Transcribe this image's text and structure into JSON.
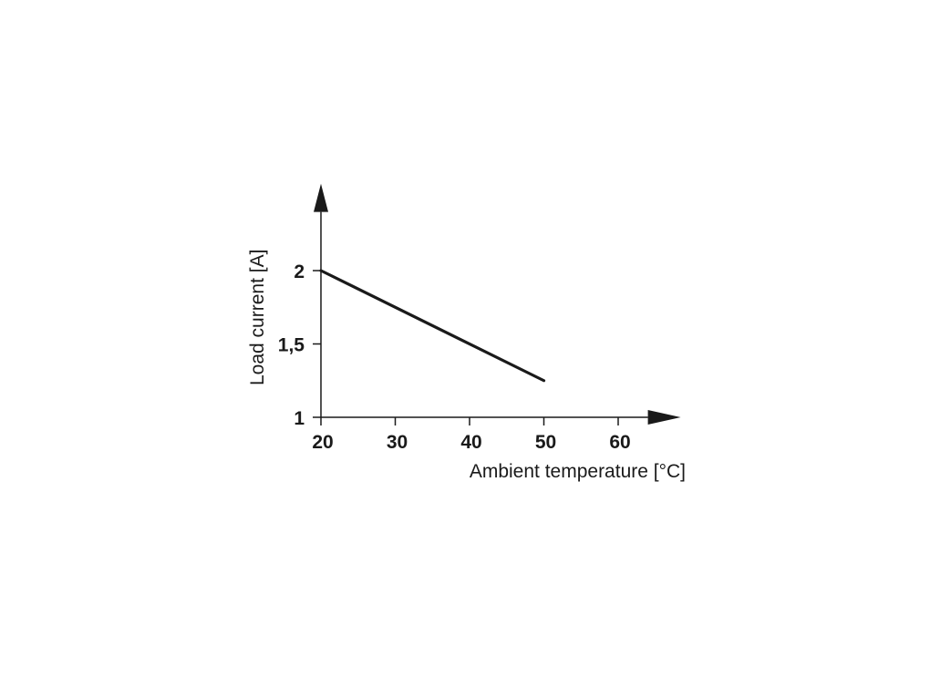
{
  "chart_data": {
    "type": "line",
    "title": "",
    "xlabel": "Ambient temperature [°C]",
    "ylabel": "Load current [A]",
    "xlim": [
      20,
      64
    ],
    "ylim": [
      1,
      2.4
    ],
    "x_ticks": [
      20,
      30,
      40,
      50,
      60
    ],
    "x_tick_labels": [
      "20",
      "30",
      "40",
      "50",
      "60"
    ],
    "y_ticks": [
      1,
      1.5,
      2
    ],
    "y_tick_labels": [
      "1",
      "1,5",
      "2"
    ],
    "grid": false,
    "legend": "none",
    "series": [
      {
        "x": [
          20,
          50
        ],
        "values": [
          2,
          1.25
        ],
        "color": "#1a1a1a"
      }
    ]
  }
}
